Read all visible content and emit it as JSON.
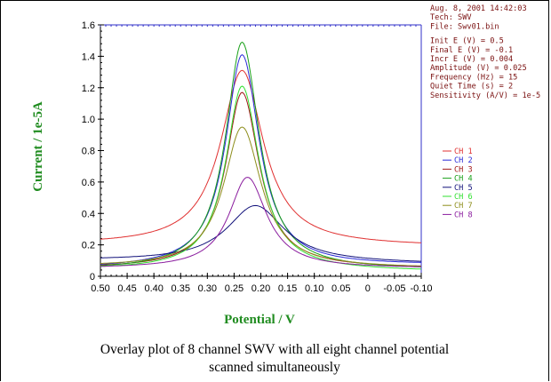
{
  "chart_data": {
    "type": "line",
    "xlabel": "Potential / V",
    "ylabel": "Current / 1e-5A",
    "xlim": [
      0.5,
      -0.1
    ],
    "ylim": [
      0,
      1.6
    ],
    "x_reversed": true,
    "x_ticks": [
      "0.50",
      "0.45",
      "0.40",
      "0.35",
      "0.30",
      "0.25",
      "0.20",
      "0.15",
      "0.10",
      "0.05",
      "0",
      "-0.05",
      "-0.10"
    ],
    "x_tick_values": [
      0.5,
      0.45,
      0.4,
      0.35,
      0.3,
      0.25,
      0.2,
      0.15,
      0.1,
      0.05,
      0,
      -0.05,
      -0.1
    ],
    "y_ticks": [
      "0",
      "0.2",
      "0.4",
      "0.6",
      "0.8",
      "1.0",
      "1.2",
      "1.4",
      "1.6"
    ],
    "y_tick_values": [
      0,
      0.2,
      0.4,
      0.6,
      0.8,
      1.0,
      1.2,
      1.4,
      1.6
    ],
    "grid": false,
    "legend_position": "right",
    "series": [
      {
        "name": "CH 1",
        "color": "#e03030",
        "peak_x": 0.235,
        "peak_y": 1.31,
        "base_left": 0.2,
        "base_right": 0.19,
        "width_left": 0.052,
        "width_right": 0.052
      },
      {
        "name": "CH 2",
        "color": "#2a2ad8",
        "peak_x": 0.235,
        "peak_y": 1.41,
        "base_left": 0.05,
        "base_right": 0.07,
        "width_left": 0.04,
        "width_right": 0.042
      },
      {
        "name": "CH 3",
        "color": "#a01818",
        "peak_x": 0.235,
        "peak_y": 1.17,
        "base_left": 0.05,
        "base_right": 0.05,
        "width_left": 0.04,
        "width_right": 0.042
      },
      {
        "name": "CH 4",
        "color": "#18a018",
        "peak_x": 0.235,
        "peak_y": 1.49,
        "base_left": 0.04,
        "base_right": 0.04,
        "width_left": 0.04,
        "width_right": 0.042
      },
      {
        "name": "CH 5",
        "color": "#10107a",
        "peak_x": 0.21,
        "peak_y": 0.45,
        "base_left": 0.1,
        "base_right": 0.08,
        "width_left": 0.07,
        "width_right": 0.07
      },
      {
        "name": "CH 6",
        "color": "#30e030",
        "peak_x": 0.235,
        "peak_y": 1.21,
        "base_left": 0.04,
        "base_right": 0.03,
        "width_left": 0.04,
        "width_right": 0.042
      },
      {
        "name": "CH 7",
        "color": "#8e8e1c",
        "peak_x": 0.235,
        "peak_y": 0.95,
        "base_left": 0.06,
        "base_right": 0.05,
        "width_left": 0.045,
        "width_right": 0.047
      },
      {
        "name": "CH 8",
        "color": "#8a1c9e",
        "peak_x": 0.225,
        "peak_y": 0.63,
        "base_left": 0.05,
        "base_right": 0.05,
        "width_left": 0.045,
        "width_right": 0.047
      }
    ],
    "info_lines": [
      "Aug. 8, 2001   14:42:03",
      "Tech: SWV",
      "File: Swv01.bin",
      "",
      "Init E (V) = 0.5",
      "Final E (V) = -0.1",
      "Incr E (V) = 0.004",
      "Amplitude (V) = 0.025",
      "Frequency (Hz) = 15",
      "Quiet Time (s) = 2",
      "Sensitivity (A/V) = 1e-5"
    ]
  },
  "caption": {
    "line1": "Overlay plot of 8 channel SWV with all eight channel potential",
    "line2": "scanned simultaneously"
  }
}
